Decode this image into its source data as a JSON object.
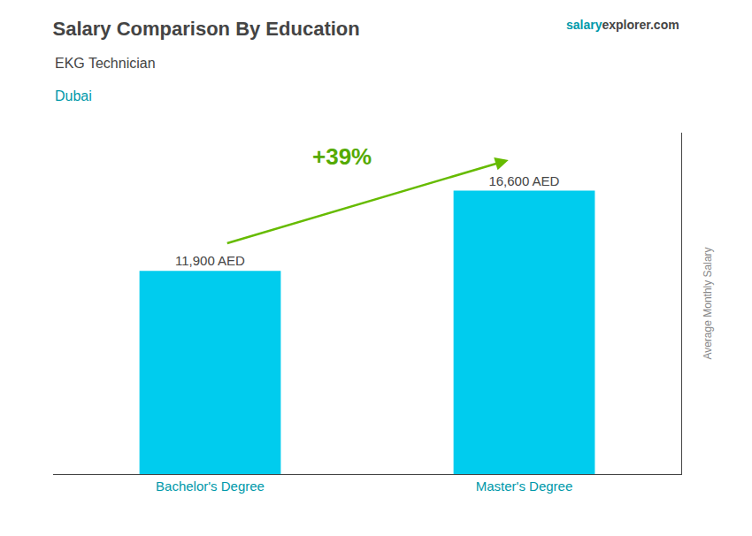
{
  "chart_data": {
    "type": "bar",
    "title": "Salary Comparison By Education",
    "subtitle": "EKG Technician",
    "annotations": [
      "Dubai",
      "salary",
      "explorer.com",
      "+39%"
    ],
    "ylabel": "Average Monthly Salary",
    "categories": [
      "Bachelor's Degree",
      "Master's Degree"
    ],
    "values": [
      11900,
      16600
    ],
    "value_labels": [
      "11,900 AED",
      "16,600 AED"
    ],
    "data_labels": true,
    "color": "#00ccee",
    "ylim": [
      0,
      20000
    ],
    "tick_labels": "x",
    "grid": false
  }
}
